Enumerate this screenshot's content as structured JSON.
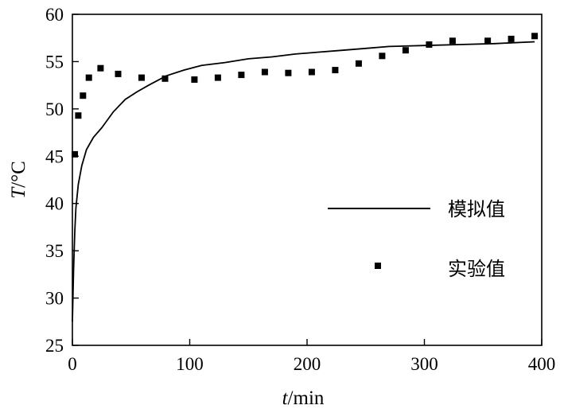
{
  "chart_data": {
    "type": "line",
    "xlabel_italic": "t",
    "xlabel_rest": "/min",
    "ylabel_italic": "T",
    "ylabel_rest": "/°C",
    "xlim": [
      0,
      400
    ],
    "ylim": [
      25,
      60
    ],
    "x_ticks": [
      0,
      100,
      200,
      300,
      400
    ],
    "y_ticks": [
      25,
      30,
      35,
      40,
      45,
      50,
      55,
      60
    ],
    "grid": false,
    "legend_position": "right",
    "series": [
      {
        "name": "模拟值",
        "style": "line",
        "points": [
          [
            0,
            27.5
          ],
          [
            1,
            33
          ],
          [
            2,
            37
          ],
          [
            3,
            39.5
          ],
          [
            5,
            42
          ],
          [
            8,
            44
          ],
          [
            12,
            45.7
          ],
          [
            18,
            47
          ],
          [
            25,
            48
          ],
          [
            35,
            49.7
          ],
          [
            45,
            51
          ],
          [
            55,
            51.8
          ],
          [
            65,
            52.5
          ],
          [
            80,
            53.5
          ],
          [
            95,
            54.1
          ],
          [
            110,
            54.6
          ],
          [
            130,
            54.9
          ],
          [
            150,
            55.3
          ],
          [
            170,
            55.5
          ],
          [
            190,
            55.8
          ],
          [
            210,
            56.0
          ],
          [
            230,
            56.2
          ],
          [
            250,
            56.4
          ],
          [
            270,
            56.6
          ],
          [
            300,
            56.7
          ],
          [
            330,
            56.8
          ],
          [
            360,
            56.9
          ],
          [
            394,
            57.1
          ]
        ]
      },
      {
        "name": "实验值",
        "style": "marker",
        "points": [
          [
            2,
            45.2
          ],
          [
            5,
            49.3
          ],
          [
            9,
            51.4
          ],
          [
            14,
            53.3
          ],
          [
            24,
            54.3
          ],
          [
            39,
            53.7
          ],
          [
            59,
            53.3
          ],
          [
            79,
            53.2
          ],
          [
            104,
            53.1
          ],
          [
            124,
            53.3
          ],
          [
            144,
            53.6
          ],
          [
            164,
            53.9
          ],
          [
            184,
            53.8
          ],
          [
            204,
            53.9
          ],
          [
            224,
            54.1
          ],
          [
            244,
            54.8
          ],
          [
            264,
            55.6
          ],
          [
            284,
            56.2
          ],
          [
            304,
            56.8
          ],
          [
            324,
            57.2
          ],
          [
            354,
            57.2
          ],
          [
            374,
            57.4
          ],
          [
            394,
            57.7
          ]
        ]
      }
    ]
  }
}
